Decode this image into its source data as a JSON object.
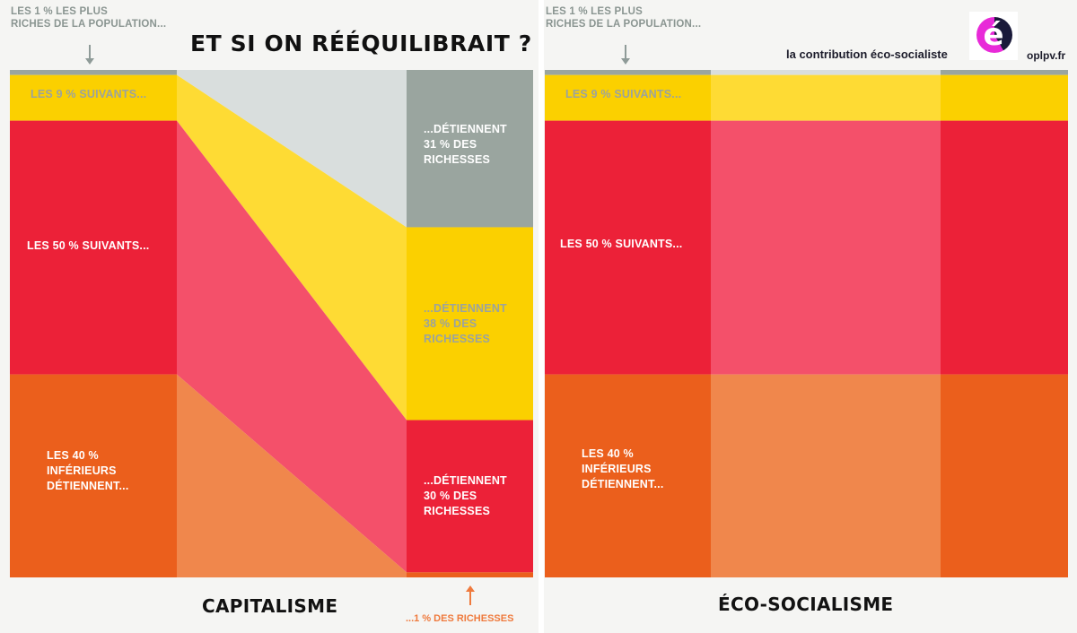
{
  "headline": "ET SI ON RÉÉQUILIBRAIT ?",
  "branding": {
    "tagline": "la contribution éco-socialiste",
    "site": "oplpv.fr",
    "logo_letter": "é",
    "logo_colors": [
      "#1a1a3a",
      "#e82ad8"
    ]
  },
  "left_panel": {
    "title": "CAPITALISME",
    "top_note": "LES 1 % LES PLUS\nRICHES DE LA POPULATION...",
    "bottom_note": "...1 % DES RICHESSES",
    "population_labels": [
      "LES 9 % SUIVANTS...",
      "LES 50 % SUIVANTS...",
      "LES 40 %\nINFÉRIEURS\nDÉTIENNENT..."
    ],
    "wealth_labels": [
      "...DÉTIENNENT\n31 % DES\nRICHESSES",
      "...DÉTIENNENT\n38 % DES\nRICHESSES",
      "...DÉTIENNENT\n30 % DES\nRICHESSES"
    ]
  },
  "right_panel": {
    "title": "ÉCO-SOCIALISME",
    "top_note": "LES 1 % LES PLUS\nRICHES DE LA POPULATION...",
    "population_labels": [
      "LES 9 % SUIVANTS...",
      "LES 50 % SUIVANTS...",
      "LES 40 %\nINFÉRIEURS\nDÉTIENNENT..."
    ]
  },
  "groups": [
    {
      "key": "top1",
      "population_pct": 1,
      "wealth_capitalisme_pct": 31,
      "wealth_eco_pct": 1,
      "color": "#9aa59f",
      "flow_color": "#d9dedd"
    },
    {
      "key": "next9",
      "population_pct": 9,
      "wealth_capitalisme_pct": 38,
      "wealth_eco_pct": 9,
      "color": "#fbd000",
      "flow_color": "#fedb34"
    },
    {
      "key": "next50",
      "population_pct": 50,
      "wealth_capitalisme_pct": 30,
      "wealth_eco_pct": 50,
      "color": "#ec2138",
      "flow_color": "#f4506a"
    },
    {
      "key": "bottom40",
      "population_pct": 40,
      "wealth_capitalisme_pct": 1,
      "wealth_eco_pct": 40,
      "color": "#eb5f1c",
      "flow_color": "#f0874c"
    }
  ]
}
